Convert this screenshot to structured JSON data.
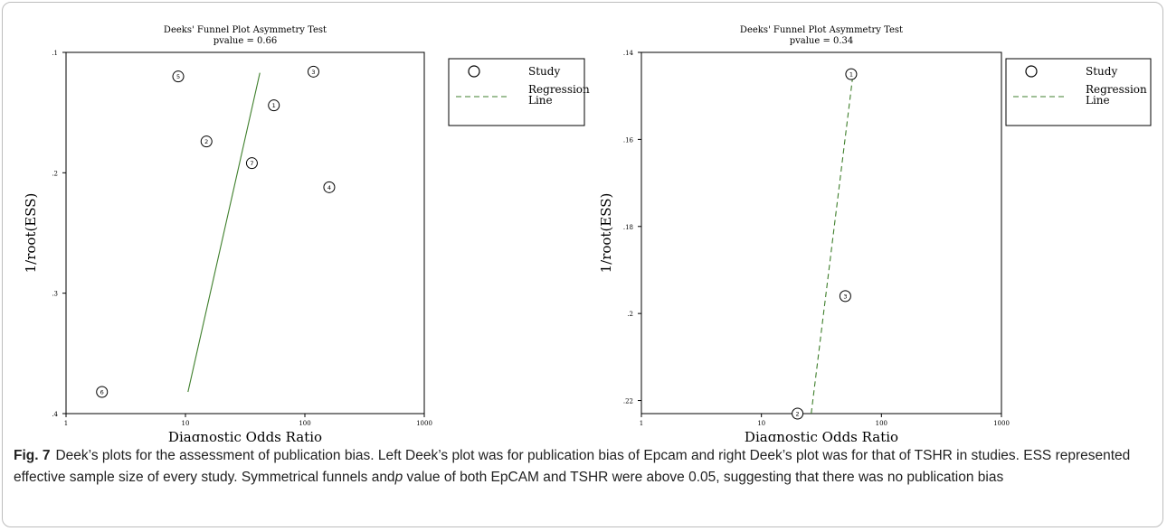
{
  "chart_data": [
    {
      "type": "scatter",
      "title": "Deeks' Funnel Plot Asymmetry Test",
      "subtitle": "pvalue  =  0.66",
      "xlabel": "Diagnostic Odds Ratio",
      "ylabel": "1/root(ESS)",
      "x_scale": "log",
      "xlim": [
        1,
        1000
      ],
      "ylim": [
        0.1,
        0.4
      ],
      "y_reversed": true,
      "xticks": [
        1,
        10,
        100,
        1000
      ],
      "xtick_labels": [
        "1",
        "10",
        "100",
        "1000"
      ],
      "yticks": [
        0.1,
        0.2,
        0.3,
        0.4
      ],
      "ytick_labels": [
        ".1",
        ".2",
        ".3",
        ".4"
      ],
      "points": [
        {
          "label": "1",
          "x": 55,
          "y": 0.144
        },
        {
          "label": "2",
          "x": 15,
          "y": 0.174
        },
        {
          "label": "3",
          "x": 118,
          "y": 0.116
        },
        {
          "label": "4",
          "x": 160,
          "y": 0.212
        },
        {
          "label": "5",
          "x": 8.7,
          "y": 0.12
        },
        {
          "label": "6",
          "x": 2,
          "y": 0.382
        },
        {
          "label": "7",
          "x": 36,
          "y": 0.192
        }
      ],
      "regression_line": {
        "style": "solid",
        "color": "#3f7f2c",
        "points": [
          [
            10.5,
            0.382
          ],
          [
            42,
            0.117
          ]
        ]
      },
      "legend": {
        "position": "right",
        "items": [
          "Study",
          "Regression Line"
        ]
      }
    },
    {
      "type": "scatter",
      "title": "Deeks' Funnel Plot Asymmetry Test",
      "subtitle": "pvalue  =  0.34",
      "xlabel": "Diagnostic Odds Ratio",
      "ylabel": "1/root(ESS)",
      "x_scale": "log",
      "xlim": [
        1,
        1000
      ],
      "ylim": [
        0.14,
        0.223
      ],
      "y_reversed": true,
      "xticks": [
        1,
        10,
        100,
        1000
      ],
      "xtick_labels": [
        "1",
        "10",
        "100",
        "1000"
      ],
      "yticks": [
        0.14,
        0.16,
        0.18,
        0.2,
        0.22
      ],
      "ytick_labels": [
        ".14",
        ".16",
        ".18",
        ".2",
        ".22"
      ],
      "points": [
        {
          "label": "1",
          "x": 56,
          "y": 0.145
        },
        {
          "label": "2",
          "x": 20,
          "y": 0.223
        },
        {
          "label": "3",
          "x": 50,
          "y": 0.196
        }
      ],
      "regression_line": {
        "style": "dashed",
        "color": "#3f7f2c",
        "points": [
          [
            26,
            0.223
          ],
          [
            58,
            0.145
          ]
        ]
      },
      "legend": {
        "position": "right",
        "items": [
          "Study",
          "Regression Line"
        ]
      }
    }
  ],
  "caption": {
    "fig_label": "Fig. 7",
    "text_before": "Deek’s plots for the assessment of publication bias. Left Deek’s plot was for publication bias of Epcam and right Deek’s plot was for that of TSHR in studies. ESS represented effective sample size of every study. Symmetrical funnels and",
    "p_symbol": "p",
    "text_after": " value of both EpCAM and TSHR were above 0.05, suggesting that there was no publication bias"
  },
  "colors": {
    "regression": "#3f7f2c",
    "axis": "#000000",
    "marker": "#000000"
  }
}
